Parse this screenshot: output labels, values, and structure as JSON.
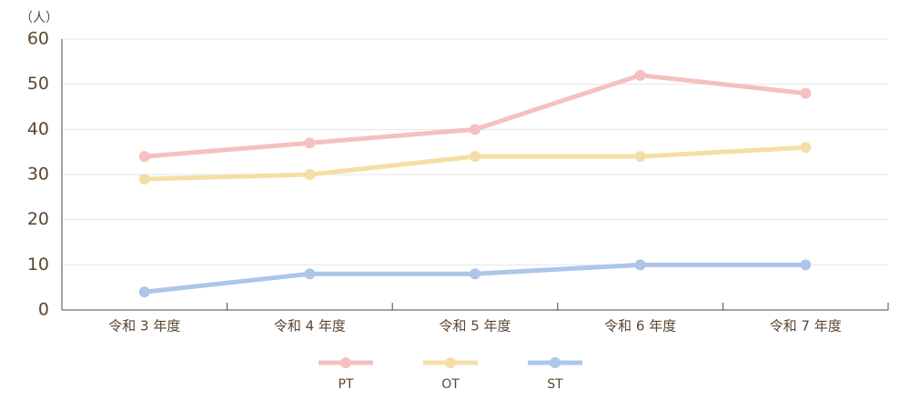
{
  "chart_data": {
    "type": "line",
    "y_label": "（人）",
    "categories": [
      "令和 3 年度",
      "令和 4 年度",
      "令和 5 年度",
      "令和 6 年度",
      "令和 7 年度"
    ],
    "series": [
      {
        "name": "PT",
        "color": "#f5c0bf",
        "values": [
          34,
          37,
          40,
          52,
          48
        ]
      },
      {
        "name": "OT",
        "color": "#f3dfa6",
        "values": [
          29,
          30,
          34,
          34,
          36
        ]
      },
      {
        "name": "ST",
        "color": "#aec5ea",
        "values": [
          4,
          8,
          8,
          10,
          10
        ]
      }
    ],
    "ylim": [
      0,
      60
    ],
    "yticks": [
      0,
      10,
      20,
      30,
      40,
      50,
      60
    ],
    "grid": true,
    "legend": "bottom"
  }
}
